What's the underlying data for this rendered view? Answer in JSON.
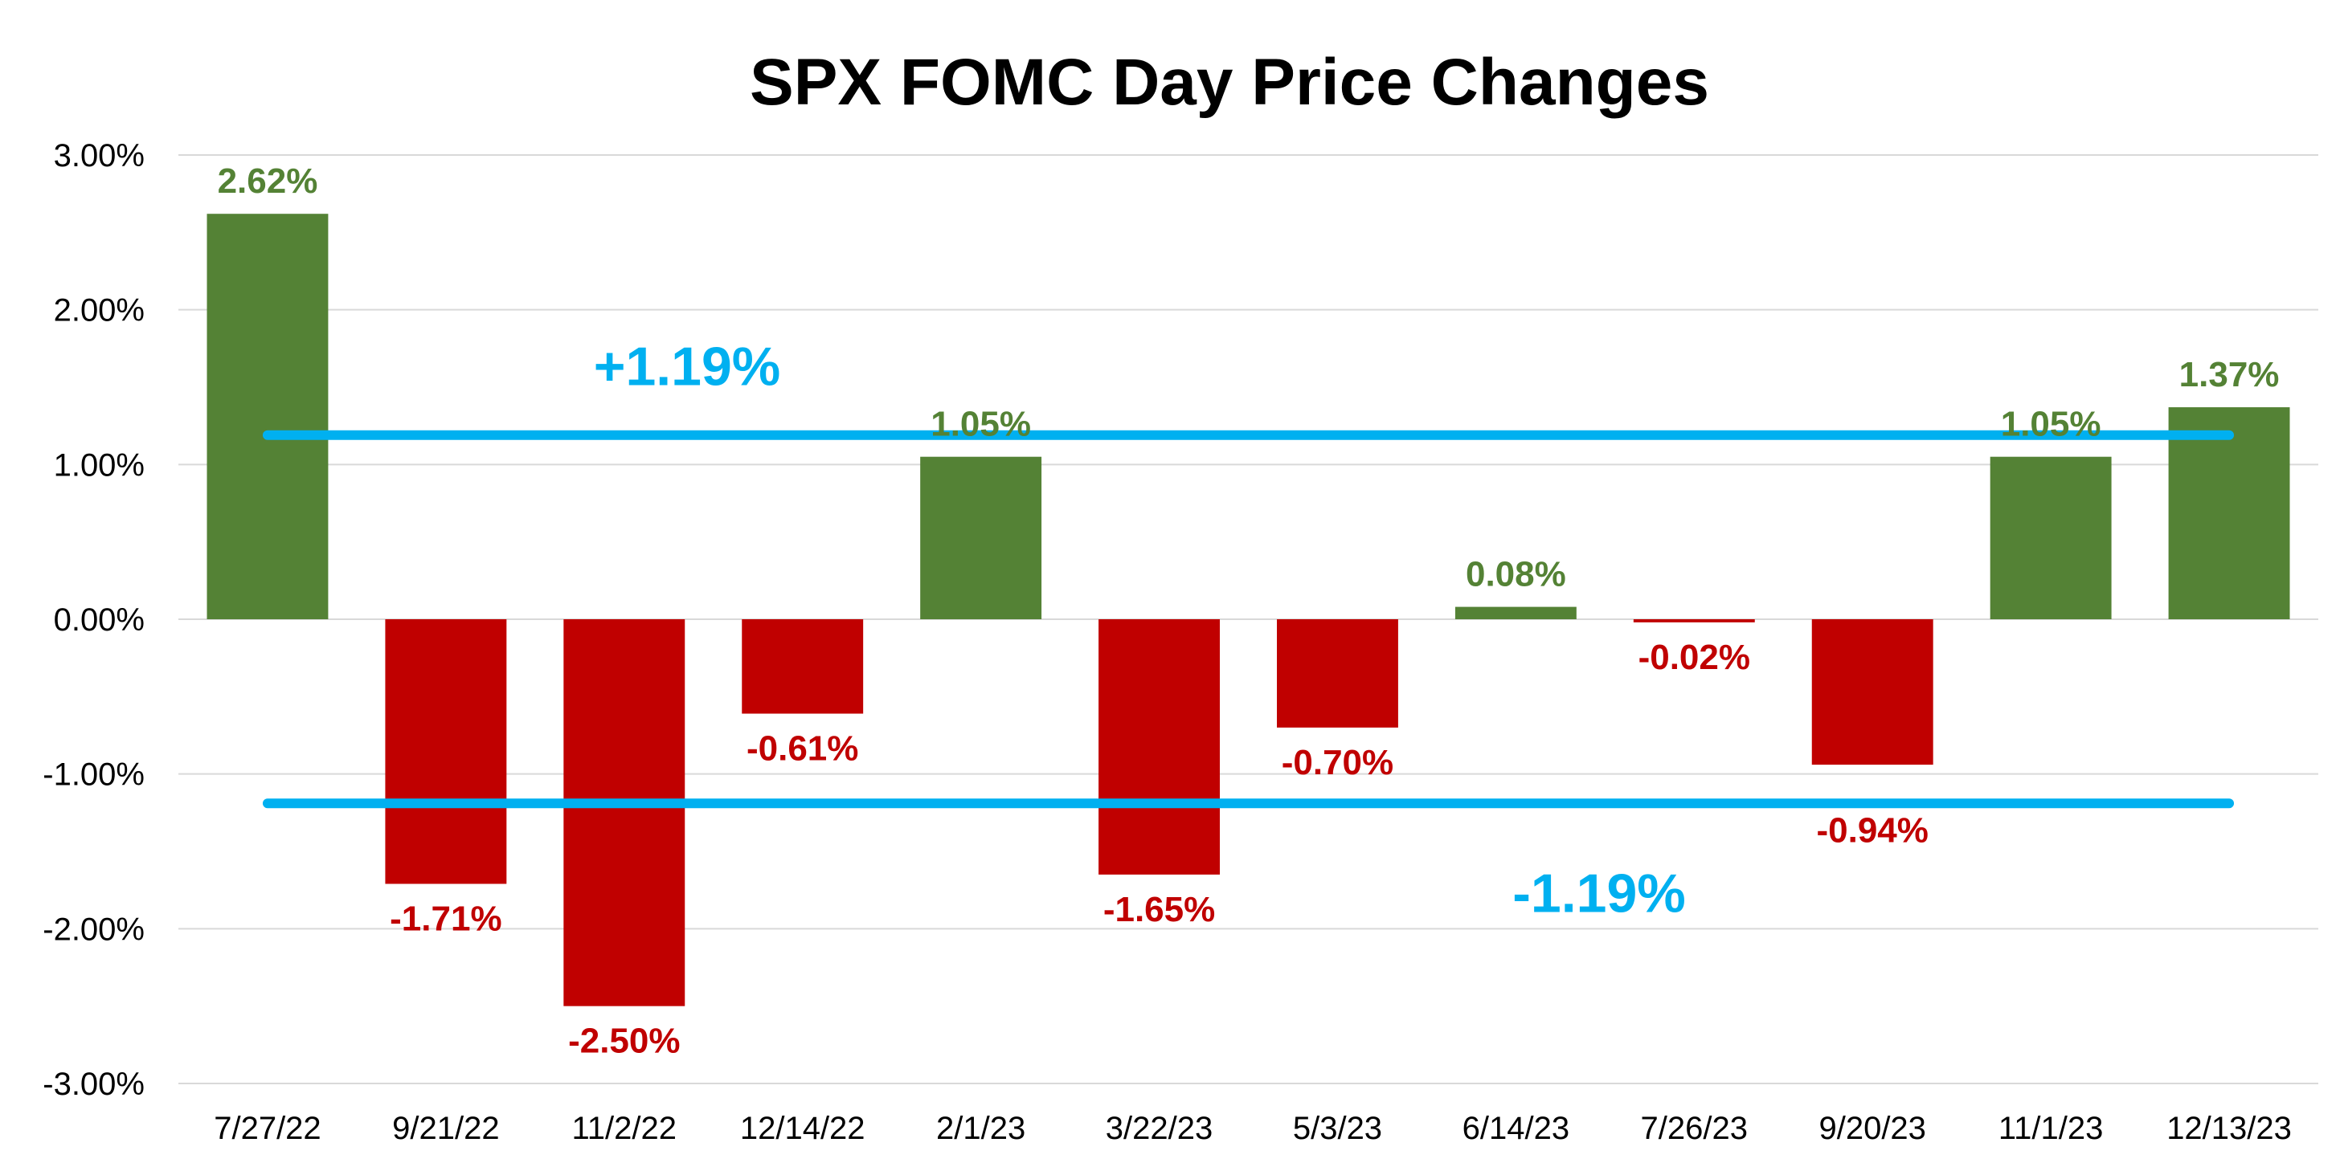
{
  "chart_data": {
    "type": "bar",
    "title": "SPX FOMC Day Price Changes",
    "categories": [
      "7/27/22",
      "9/21/22",
      "11/2/22",
      "12/14/22",
      "2/1/23",
      "3/22/23",
      "5/3/23",
      "6/14/23",
      "7/26/23",
      "9/20/23",
      "11/1/23",
      "12/13/23"
    ],
    "values": [
      2.62,
      -1.71,
      -2.5,
      -0.61,
      1.05,
      -1.65,
      -0.7,
      0.08,
      -0.02,
      -0.94,
      1.05,
      1.37
    ],
    "data_labels": [
      "2.62%",
      "-1.71%",
      "-2.50%",
      "-0.61%",
      "1.05%",
      "-1.65%",
      "-0.70%",
      "0.08%",
      "-0.02%",
      "-0.94%",
      "1.05%",
      "1.37%"
    ],
    "ylim": [
      -3,
      3
    ],
    "yticks": [
      3,
      2,
      1,
      0,
      -1,
      -2,
      -3
    ],
    "ytick_labels": [
      "3.00%",
      "2.00%",
      "1.00%",
      "0.00%",
      "-1.00%",
      "-2.00%",
      "-3.00%"
    ],
    "grid": true,
    "reference_lines": [
      {
        "value": 1.19,
        "label": "+1.19%"
      },
      {
        "value": -1.19,
        "label": "-1.19%"
      }
    ],
    "colors": {
      "positive": "#548235",
      "negative": "#C00000",
      "reference": "#00B0F0",
      "grid": "#D9D9D9"
    }
  }
}
